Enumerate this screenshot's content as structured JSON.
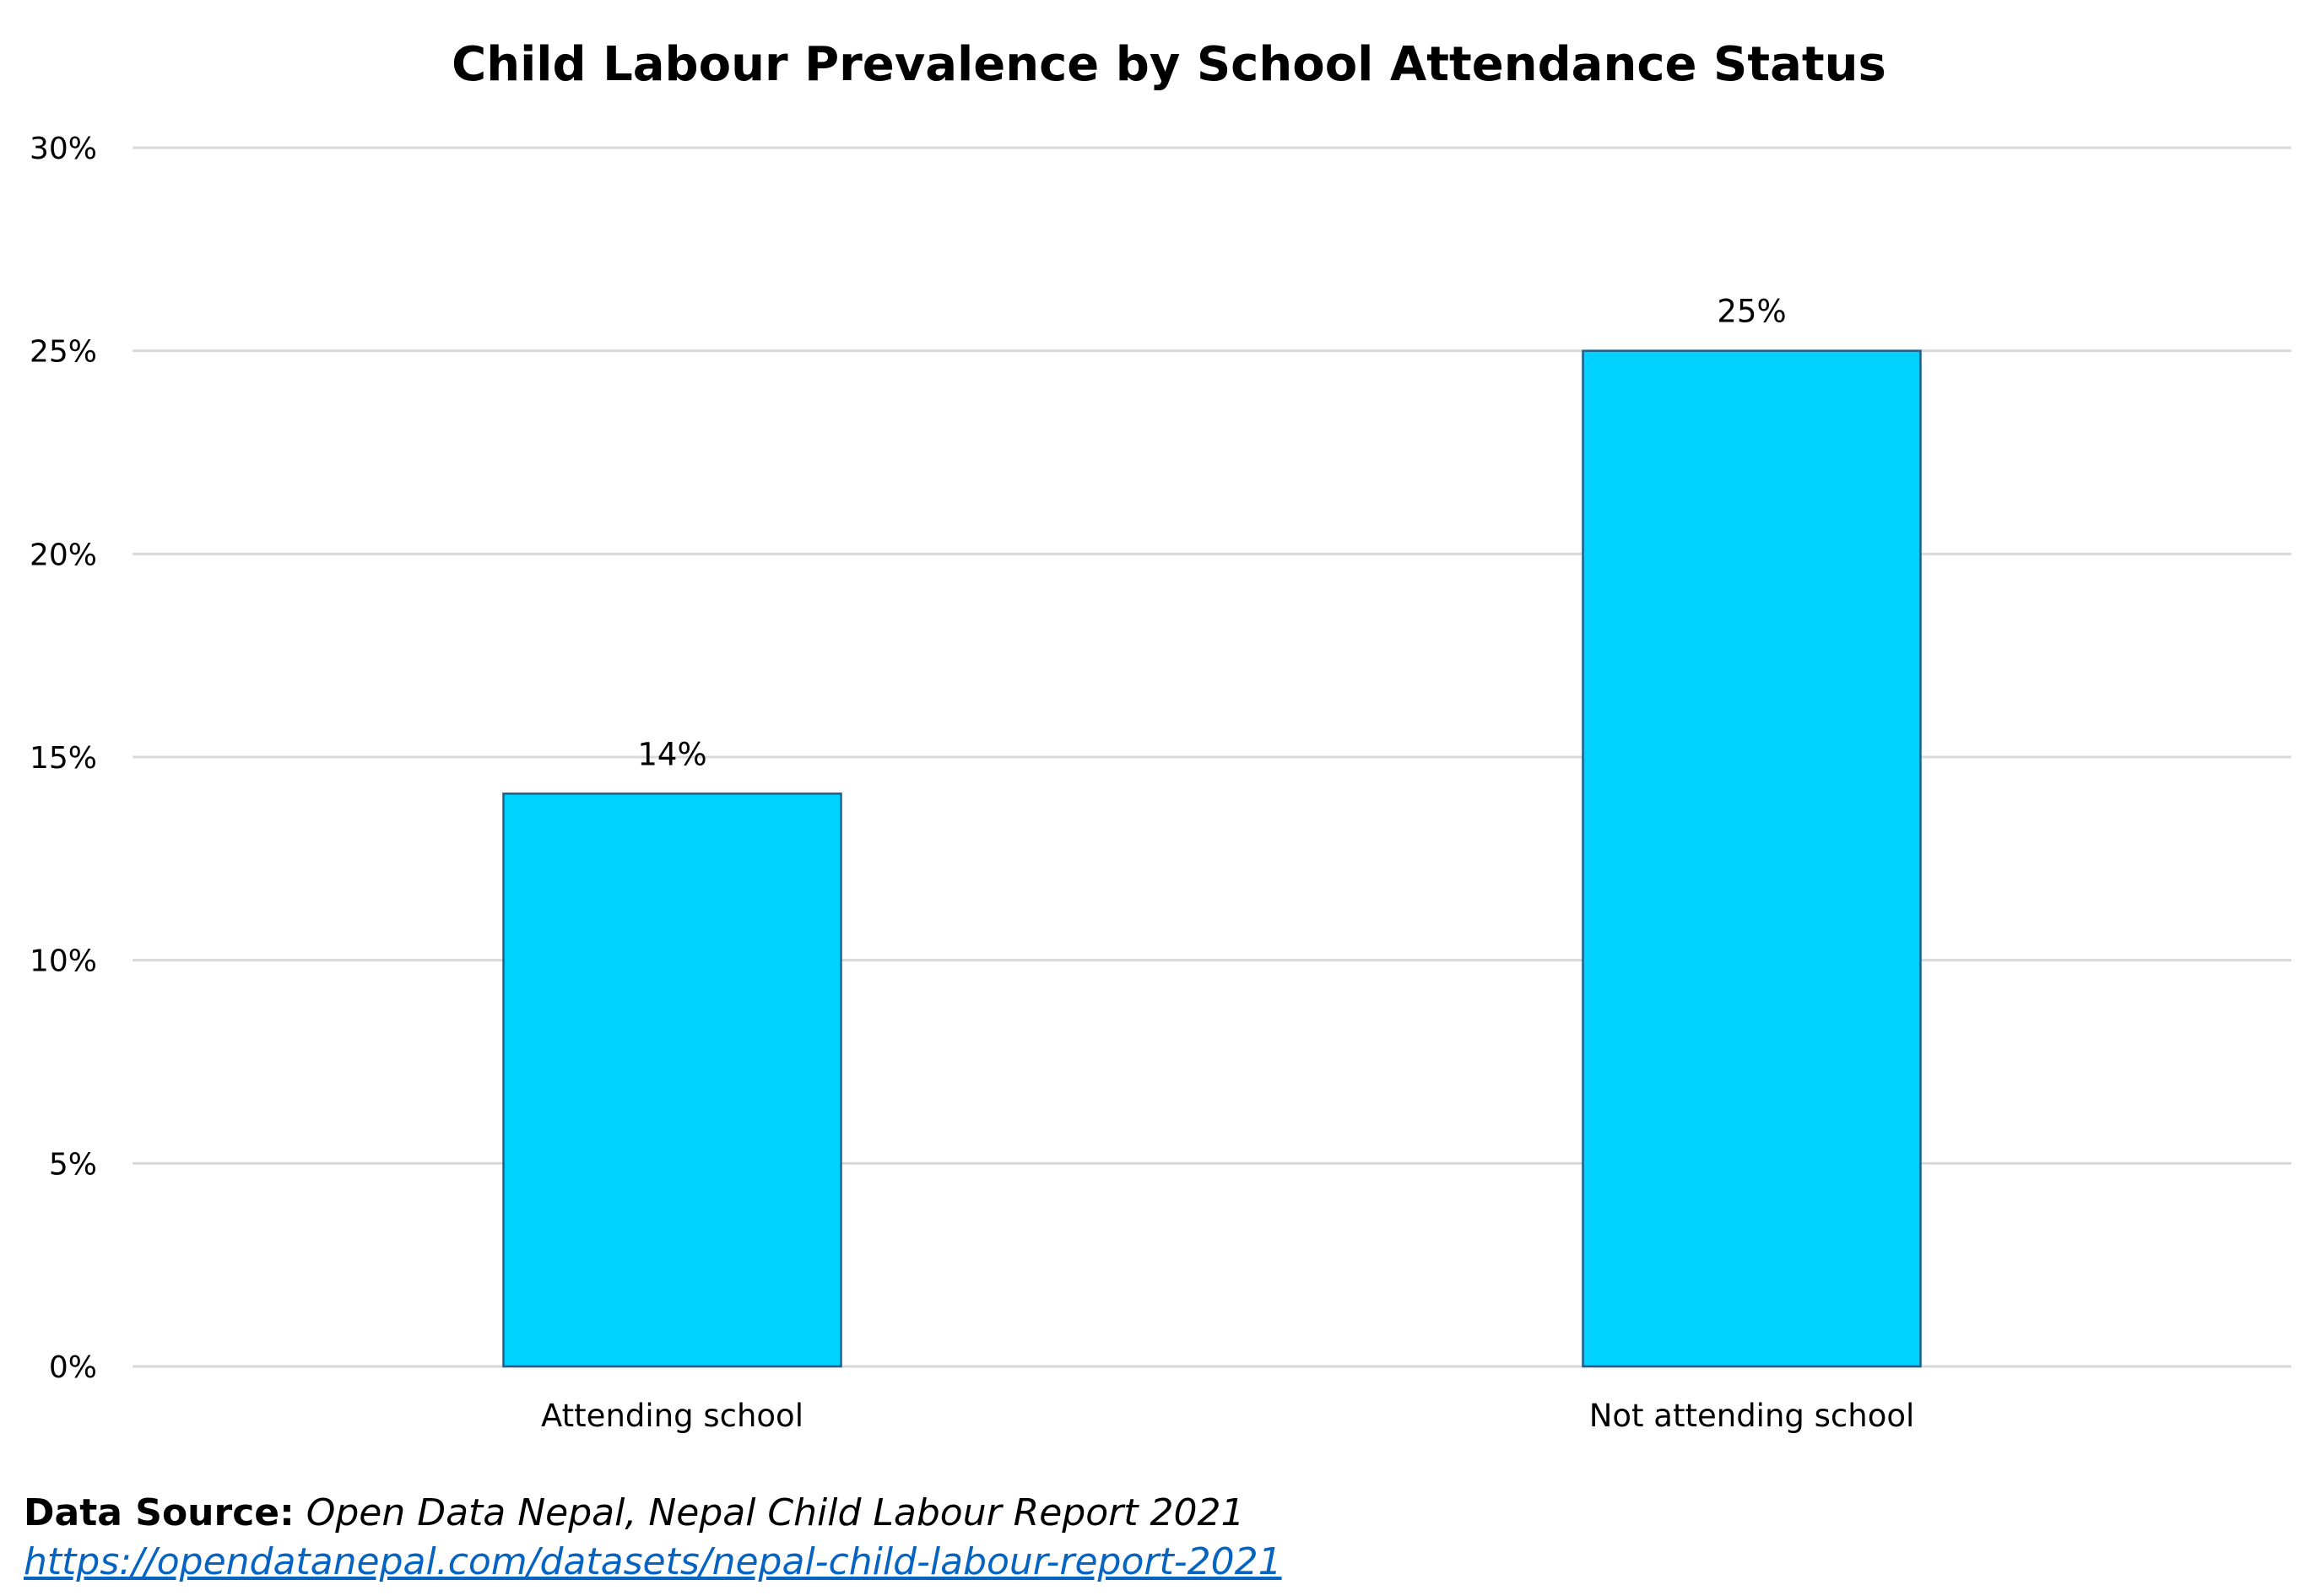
{
  "chart_data": {
    "type": "bar",
    "title": "Child Labour Prevalence by School Attendance Status",
    "categories": [
      "Attending school",
      "Not attending school"
    ],
    "values": [
      14.1,
      25.0
    ],
    "data_labels": [
      "14%",
      "25%"
    ],
    "xlabel": "",
    "ylabel": "",
    "ylim": [
      0,
      30
    ],
    "yticks": [
      0,
      5,
      10,
      15,
      20,
      25,
      30
    ],
    "ytick_labels": [
      "0%",
      "5%",
      "10%",
      "15%",
      "20%",
      "25%",
      "30%"
    ],
    "grid": true,
    "legend": "none",
    "colors": {
      "bar_fill": "#00D1FF",
      "bar_edge": "#1F5F8B",
      "grid": "#D9D9D9"
    }
  },
  "footer": {
    "source_label": "Data Source:",
    "source_text": " Open Data Nepal, Nepal Child Labour Report 2021",
    "link_text": "https://opendatanepal.com/datasets/nepal-child-labour-report-2021",
    "link_color": "#0563C1"
  }
}
